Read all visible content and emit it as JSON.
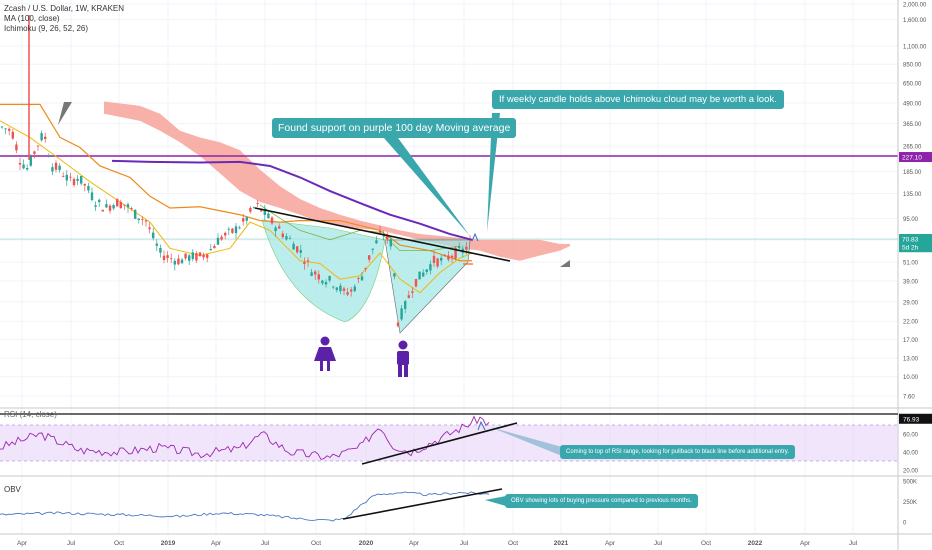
{
  "header": {
    "symbol_line": "Zcash / U.S. Dollar, 1W, KRAKEN",
    "ma_line": "MA (100, close)",
    "ichimoku_line": "Ichimoku (9, 26, 52, 26)"
  },
  "callouts": {
    "support": "Found support on purple 100 day Moving average",
    "cloud": "If weekly candle holds above Ichimoku cloud may be worth a look.",
    "rsi": "Coming to top of RSI range, looking for pullback to black line before additional entry.",
    "obv": "OBV showing lots of buying pressure compared to previous months."
  },
  "colors": {
    "candle_up": "#26a69a",
    "candle_down": "#ef5350",
    "ma": "#6a2ab8",
    "cloud": "#f7a399",
    "tenkan": "#f0b90b",
    "kijun": "#ef8a1a",
    "rsi": "#9c27b0",
    "obv": "#4a78c0",
    "callout": "#3aa7ad"
  },
  "chart_data": [
    {
      "type": "candlestick",
      "name": "main",
      "y_scale": "log",
      "y_ticks": [
        "2,000.00",
        "1,600.00",
        "1,100.00",
        "850.00",
        "650.00",
        "490.00",
        "365.00",
        "265.00",
        "185.00",
        "135.00",
        "95.00",
        "70.00",
        "51.00",
        "39.00",
        "29.00",
        "22.00",
        "17.00",
        "13.00",
        "10.00",
        "7.60"
      ],
      "y_tick_values": [
        2000,
        1600,
        1100,
        850,
        650,
        490,
        365,
        265,
        185,
        135,
        95,
        70,
        51,
        39,
        29,
        22,
        17,
        13,
        10,
        7.6
      ],
      "price_labels": [
        {
          "text": "227.10",
          "value": 227.1,
          "color": "#8e24aa"
        },
        {
          "text": "70.83",
          "value": 70.83,
          "color": "#26a69a"
        },
        {
          "text": "5d 2h",
          "value": 63,
          "color": "#26a69a"
        }
      ],
      "horizontal_line": 227.1,
      "ma100_value_at_support": 70,
      "annotations": [
        "purple 100 day Moving average",
        "inverse head and shoulders",
        "female-icon",
        "male-icon"
      ]
    },
    {
      "type": "line",
      "name": "RSI (14, close)",
      "label": "RSI (14, close)",
      "y_ticks": [
        "80.00",
        "60.00",
        "40.00",
        "20.00"
      ],
      "y_tick_values": [
        80,
        60,
        40,
        20
      ],
      "value_label": "76.93",
      "current_value": 76.93,
      "band": [
        30,
        70
      ]
    },
    {
      "type": "line",
      "name": "OBV",
      "label": "OBV",
      "y_ticks": [
        "500K",
        "250K",
        "0"
      ],
      "y_tick_values": [
        500000,
        250000,
        0
      ]
    }
  ],
  "x_axis": {
    "ticks": [
      "Apr",
      "Jul",
      "Oct",
      "2019",
      "Apr",
      "Jul",
      "Oct",
      "2020",
      "Apr",
      "Jul",
      "Oct",
      "2021",
      "Apr",
      "Jul",
      "Oct",
      "2022",
      "Apr",
      "Jul"
    ]
  }
}
